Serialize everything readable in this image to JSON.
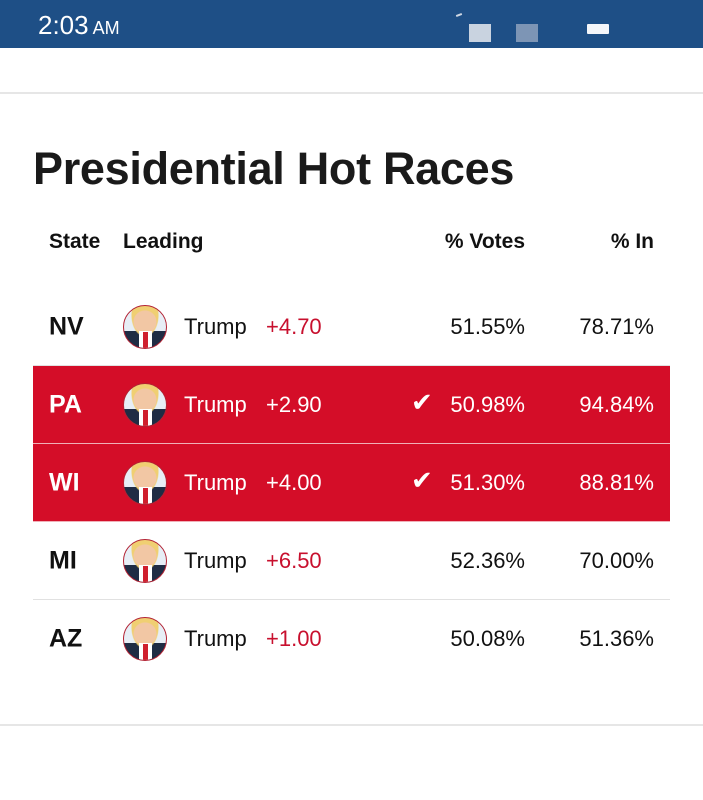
{
  "status_bar": {
    "time": "2:03",
    "ampm": "AM",
    "background": "#1e4f86"
  },
  "title": "Presidential Hot Races",
  "columns": {
    "state": "State",
    "leading": "Leading",
    "votes": "% Votes",
    "in": "% In"
  },
  "accent_color": "#d40d28",
  "rows": [
    {
      "state": "NV",
      "candidate": "Trump",
      "margin": "+4.70",
      "votes": "51.55%",
      "in": "78.71%",
      "called": false,
      "avatar": "trump-avatar"
    },
    {
      "state": "PA",
      "candidate": "Trump",
      "margin": "+2.90",
      "votes": "50.98%",
      "in": "94.84%",
      "called": true,
      "check": "✔",
      "avatar": "trump-avatar"
    },
    {
      "state": "WI",
      "candidate": "Trump",
      "margin": "+4.00",
      "votes": "51.30%",
      "in": "88.81%",
      "called": true,
      "check": "✔",
      "avatar": "trump-avatar"
    },
    {
      "state": "MI",
      "candidate": "Trump",
      "margin": "+6.50",
      "votes": "52.36%",
      "in": "70.00%",
      "called": false,
      "avatar": "trump-avatar"
    },
    {
      "state": "AZ",
      "candidate": "Trump",
      "margin": "+1.00",
      "votes": "50.08%",
      "in": "51.36%",
      "called": false,
      "avatar": "trump-avatar"
    }
  ]
}
